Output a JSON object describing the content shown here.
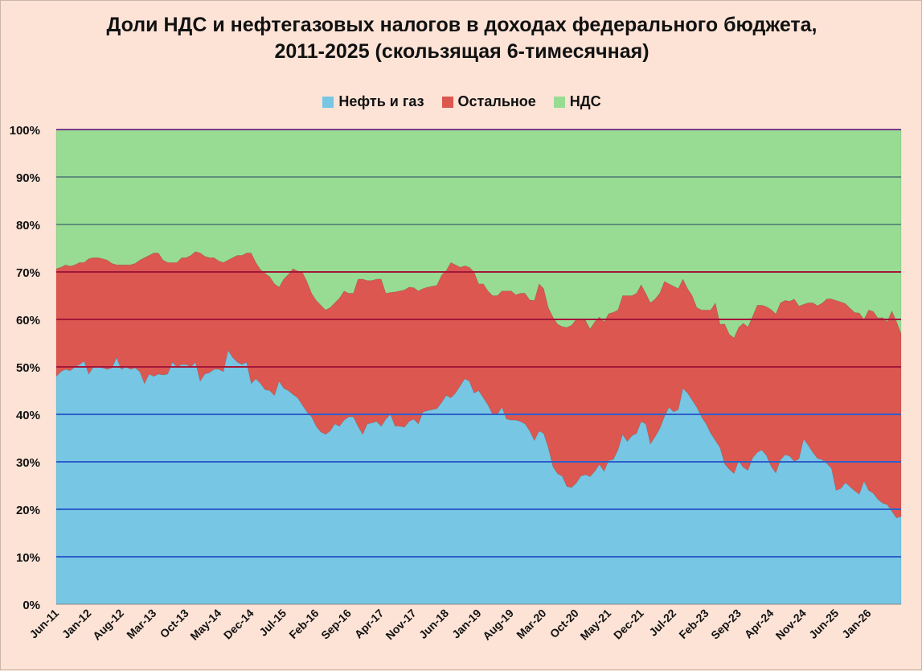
{
  "chart_data": {
    "type": "area",
    "stacked": true,
    "normalized": true,
    "title": "Доли НДС и нефтегазовых налогов в доходах федерального бюджета,\n2011-2025 (скользящая 6-тимесячная)",
    "x_tick_labels": [
      "Jun-11",
      "Jan-12",
      "Aug-12",
      "Mar-13",
      "Oct-13",
      "May-14",
      "Dec-14",
      "Jul-15",
      "Feb-16",
      "Sep-16",
      "Apr-17",
      "Nov-17",
      "Jun-18",
      "Jan-19",
      "Aug-19",
      "Mar-20",
      "Oct-20",
      "May-21",
      "Dec-21",
      "Jul-22",
      "Feb-23",
      "Sep-23",
      "Apr-24",
      "Nov-24",
      "Jun-25",
      "Jan-26"
    ],
    "y_tick_labels": [
      "0%",
      "10%",
      "20%",
      "30%",
      "40%",
      "50%",
      "60%",
      "70%",
      "80%",
      "90%",
      "100%"
    ],
    "ylim": [
      0,
      100
    ],
    "grid": true,
    "legend_position": "top",
    "x_months_per_tick": 7,
    "series": [
      {
        "name": "Нефть и газ",
        "color": "#76c6e4",
        "values": [
          48.0,
          49.0,
          49.5,
          49.2,
          50.0,
          50.5,
          51.2,
          48.5,
          50.0,
          50.0,
          49.8,
          49.5,
          49.8,
          52.0,
          49.5,
          50.0,
          49.5,
          49.8,
          49.0,
          46.5,
          48.5,
          48.0,
          48.5,
          48.3,
          48.5,
          51.0,
          50.0,
          50.5,
          50.5,
          50.0,
          51.0,
          47.0,
          48.5,
          48.8,
          49.5,
          49.5,
          49.0,
          53.5,
          52.0,
          51.0,
          50.5,
          51.0,
          46.5,
          47.5,
          46.5,
          45.2,
          45.0,
          44.0,
          47.0,
          45.5,
          45.0,
          44.2,
          43.5,
          42.0,
          40.5,
          39.5,
          37.5,
          36.3,
          35.8,
          36.5,
          38.0,
          37.5,
          38.8,
          39.5,
          39.5,
          37.5,
          35.8,
          38.0,
          38.2,
          38.5,
          37.5,
          39.0,
          40.0,
          37.5,
          37.5,
          37.3,
          38.5,
          39.0,
          38.0,
          40.5,
          40.8,
          41.0,
          41.2,
          42.5,
          44.0,
          43.5,
          44.5,
          46.0,
          47.5,
          47.0,
          44.5,
          45.0,
          43.5,
          42.0,
          40.0,
          40.0,
          41.5,
          39.0,
          38.8,
          38.8,
          38.5,
          38.0,
          36.5,
          34.5,
          36.5,
          36.0,
          33.0,
          29.0,
          27.5,
          27.0,
          24.8,
          24.6,
          25.5,
          27.0,
          27.3,
          26.9,
          28.0,
          29.5,
          28.0,
          30.3,
          30.5,
          32.5,
          35.8,
          34.3,
          35.5,
          36.0,
          38.5,
          38.0,
          33.8,
          35.3,
          37.0,
          39.5,
          41.5,
          40.5,
          41.0,
          45.5,
          44.5,
          43.0,
          41.5,
          39.5,
          38.0,
          36.0,
          34.5,
          33.0,
          29.8,
          29.0,
          27.0,
          29.0,
          29.0,
          28.5,
          30.5,
          32.0,
          32.5,
          31.5,
          29.5,
          28.5,
          30.8,
          31.5,
          30.8,
          29.5,
          30.5,
          35.0,
          33.5,
          32.0,
          31.0,
          30.0,
          29.5,
          28.5,
          24.0,
          24.5,
          25.5,
          25.0,
          24.5,
          24.0,
          26.0,
          24.0,
          23.5,
          22.0,
          21.5,
          21.0,
          19.5,
          18.0,
          18.5
        ]
      },
      {
        "name": "Остальное",
        "color": "#db5750",
        "values": [
          22.7,
          22.0,
          22.0,
          22.0,
          21.5,
          21.5,
          20.8,
          24.3,
          23.0,
          23.0,
          23.0,
          23.0,
          22.0,
          19.5,
          22.0,
          21.5,
          22.0,
          22.0,
          23.5,
          26.5,
          25.0,
          26.0,
          25.5,
          24.2,
          23.5,
          21.0,
          22.0,
          22.5,
          22.5,
          23.5,
          23.3,
          27.0,
          24.8,
          24.2,
          23.5,
          22.8,
          23.0,
          19.0,
          21.0,
          22.5,
          23.0,
          23.0,
          27.5,
          24.5,
          24.0,
          24.5,
          24.0,
          23.5,
          19.8,
          23.0,
          24.5,
          26.5,
          26.7,
          28.0,
          27.5,
          26.0,
          26.5,
          26.7,
          26.2,
          26.0,
          25.5,
          27.0,
          27.2,
          26.0,
          26.0,
          31.0,
          32.7,
          30.2,
          30.0,
          30.0,
          31.0,
          26.5,
          25.7,
          28.3,
          28.5,
          28.9,
          28.3,
          27.7,
          28.0,
          26.0,
          26.0,
          26.0,
          26.0,
          26.8,
          26.3,
          28.5,
          27.0,
          25.0,
          23.8,
          24.0,
          25.5,
          22.5,
          24.0,
          24.0,
          25.0,
          25.0,
          24.5,
          27.0,
          27.2,
          26.4,
          27.0,
          27.5,
          27.6,
          29.5,
          31.0,
          30.5,
          29.5,
          31.5,
          31.5,
          31.5,
          33.5,
          34.2,
          34.5,
          33.0,
          32.5,
          31.1,
          31.5,
          31.0,
          31.5,
          30.9,
          31.0,
          29.5,
          29.2,
          30.7,
          29.5,
          29.5,
          28.8,
          27.5,
          29.7,
          29.0,
          28.5,
          28.5,
          26.0,
          26.5,
          25.5,
          23.0,
          22.0,
          22.0,
          21.0,
          22.5,
          24.0,
          26.0,
          29.0,
          26.0,
          29.7,
          29.0,
          28.0,
          27.0,
          30.5,
          30.5,
          29.5,
          31.0,
          30.5,
          31.5,
          33.5,
          34.5,
          33.5,
          32.5,
          32.2,
          33.5,
          32.0,
          28.5,
          30.0,
          31.5,
          32.5,
          32.5,
          34.5,
          35.5,
          40.0,
          39.5,
          37.5,
          38.0,
          38.5,
          39.5,
          34.0,
          38.0,
          38.5,
          38.0,
          39.5,
          38.5,
          42.0,
          41.0,
          38.5
        ]
      },
      {
        "name": "НДС",
        "color": "#98dc93",
        "values": [
          29.3,
          29.0,
          28.5,
          28.8,
          28.5,
          28.0,
          28.0,
          27.2,
          27.0,
          27.0,
          27.2,
          27.5,
          28.2,
          28.5,
          28.5,
          28.5,
          28.5,
          28.2,
          27.5,
          27.0,
          26.5,
          26.0,
          26.0,
          27.5,
          28.0,
          28.0,
          28.0,
          27.0,
          27.0,
          26.5,
          25.7,
          26.0,
          26.7,
          27.0,
          27.0,
          27.7,
          28.0,
          27.5,
          27.0,
          26.5,
          26.5,
          26.0,
          26.0,
          28.0,
          29.5,
          30.3,
          31.0,
          32.5,
          33.2,
          31.5,
          30.5,
          29.3,
          29.8,
          30.0,
          32.0,
          34.5,
          36.0,
          37.0,
          38.0,
          37.5,
          36.5,
          35.5,
          34.0,
          34.5,
          34.5,
          31.5,
          31.5,
          31.8,
          31.8,
          31.5,
          31.5,
          34.5,
          34.3,
          34.2,
          34.0,
          33.8,
          33.2,
          33.3,
          34.0,
          33.5,
          33.2,
          33.0,
          32.8,
          30.7,
          29.7,
          28.0,
          28.5,
          29.0,
          28.7,
          29.0,
          30.0,
          32.5,
          32.5,
          34.0,
          35.0,
          35.0,
          34.0,
          34.0,
          34.0,
          34.8,
          34.5,
          34.5,
          35.9,
          36.0,
          32.5,
          33.5,
          37.5,
          39.5,
          41.0,
          41.5,
          41.7,
          41.2,
          40.0,
          40.0,
          40.2,
          42.0,
          40.5,
          39.5,
          40.5,
          38.8,
          38.5,
          38.0,
          35.0,
          35.0,
          35.0,
          34.5,
          32.7,
          34.5,
          36.5,
          35.7,
          34.5,
          32.0,
          32.5,
          33.0,
          33.5,
          31.5,
          33.5,
          35.0,
          37.5,
          38.0,
          38.0,
          38.0,
          36.5,
          41.0,
          41.3,
          44.0,
          43.0,
          40.0,
          41.0,
          42.0,
          39.0,
          37.0,
          37.0,
          37.5,
          38.5,
          40.0,
          37.0,
          36.0,
          35.7,
          35.0,
          37.0,
          37.0,
          36.5,
          36.5,
          37.5,
          36.0,
          35.5,
          35.5,
          36.0,
          36.5,
          36.5,
          38.0,
          39.5,
          40.0,
          40.0,
          38.0,
          38.5,
          39.5,
          40.0,
          40.5,
          38.0,
          40.0,
          43.0
        ]
      }
    ]
  }
}
